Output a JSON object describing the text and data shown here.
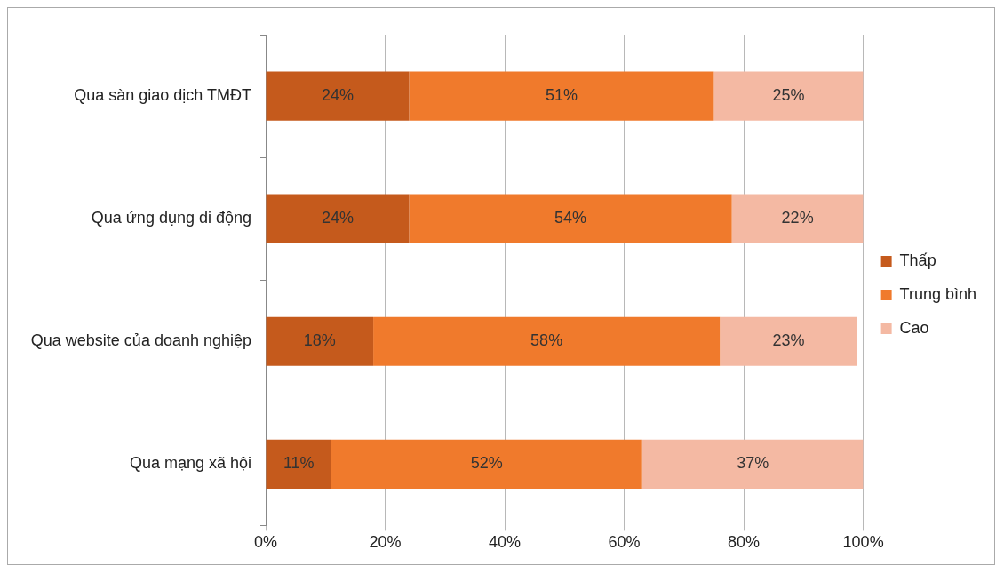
{
  "chart_data": {
    "type": "bar",
    "orientation": "horizontal",
    "stacked": true,
    "categories": [
      "Qua sàn giao dịch TMĐT",
      "Qua ứng dụng di động",
      "Qua website của doanh nghiệp",
      "Qua mạng xã hội"
    ],
    "series": [
      {
        "name": "Thấp",
        "color": "#c55a1c",
        "values": [
          24,
          24,
          18,
          11
        ],
        "value_labels": [
          "24%",
          "24%",
          "18%",
          "11%"
        ]
      },
      {
        "name": "Trung bình",
        "color": "#f07a2c",
        "values": [
          51,
          54,
          58,
          52
        ],
        "value_labels": [
          "51%",
          "54%",
          "58%",
          "52%"
        ]
      },
      {
        "name": "Cao",
        "color": "#f4b9a3",
        "values": [
          25,
          22,
          23,
          37
        ],
        "value_labels": [
          "25%",
          "22%",
          "23%",
          "37%"
        ]
      }
    ],
    "xlim": [
      0,
      100
    ],
    "xticks": [
      {
        "value": 0,
        "label": "0%"
      },
      {
        "value": 20,
        "label": "20%"
      },
      {
        "value": 40,
        "label": "40%"
      },
      {
        "value": 60,
        "label": "60%"
      },
      {
        "value": 80,
        "label": "80%"
      },
      {
        "value": 100,
        "label": "100%"
      }
    ],
    "grid": "x",
    "legend": "right"
  }
}
